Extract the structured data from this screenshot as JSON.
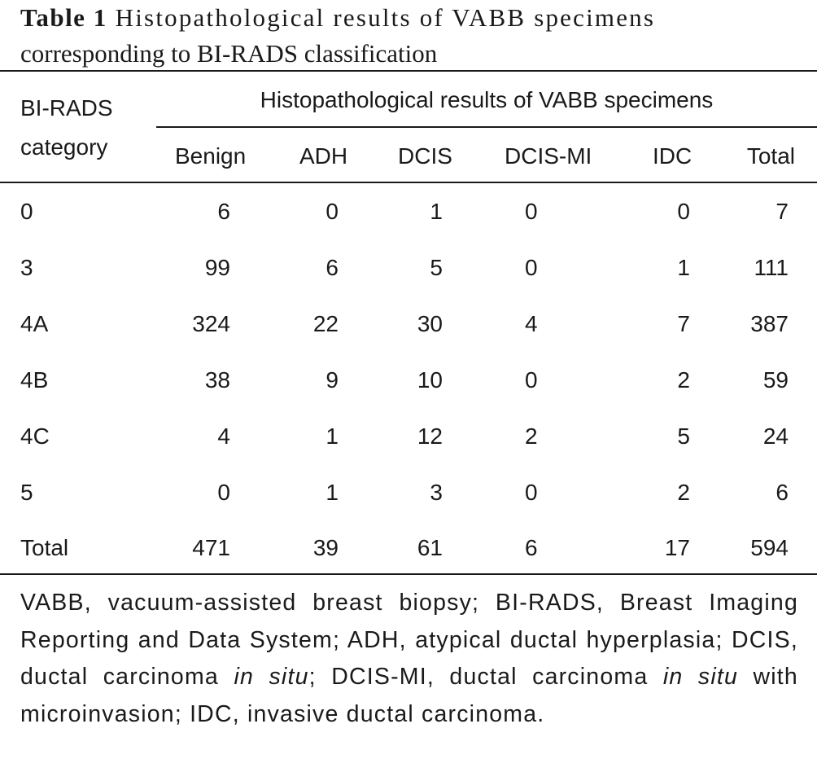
{
  "caption": {
    "label": "Table 1",
    "line1": "Histopathological results of VABB specimens",
    "line2": "corresponding to BI-RADS classification"
  },
  "table": {
    "row_header": [
      "BI-RADS",
      "category"
    ],
    "group_header": "Histopathological results of VABB specimens",
    "columns": [
      "Benign",
      "ADH",
      "DCIS",
      "DCIS-MI",
      "IDC",
      "Total"
    ],
    "rows": [
      {
        "category": "0",
        "values": [
          "6",
          "0",
          "1",
          "0",
          "0",
          "7"
        ]
      },
      {
        "category": "3",
        "values": [
          "99",
          "6",
          "5",
          "0",
          "1",
          "111"
        ]
      },
      {
        "category": "4A",
        "values": [
          "324",
          "22",
          "30",
          "4",
          "7",
          "387"
        ]
      },
      {
        "category": "4B",
        "values": [
          "38",
          "9",
          "10",
          "0",
          "2",
          "59"
        ]
      },
      {
        "category": "4C",
        "values": [
          "4",
          "1",
          "12",
          "2",
          "5",
          "24"
        ]
      },
      {
        "category": "5",
        "values": [
          "0",
          "1",
          "3",
          "0",
          "2",
          "6"
        ]
      },
      {
        "category": "Total",
        "values": [
          "471",
          "39",
          "61",
          "6",
          "17",
          "594"
        ]
      }
    ]
  },
  "footnote": {
    "part1": "VABB, vacuum-assisted breast biopsy; BI-RADS, Breast Imaging Reporting and Data System; ADH, atypical ductal hyperplasia; DCIS, ductal carcinoma ",
    "italic1": "in situ",
    "part2": "; DCIS-MI, ductal carcinoma ",
    "italic2": "in situ",
    "part3": " with microinvasion; IDC, invasive ductal carcinoma."
  }
}
